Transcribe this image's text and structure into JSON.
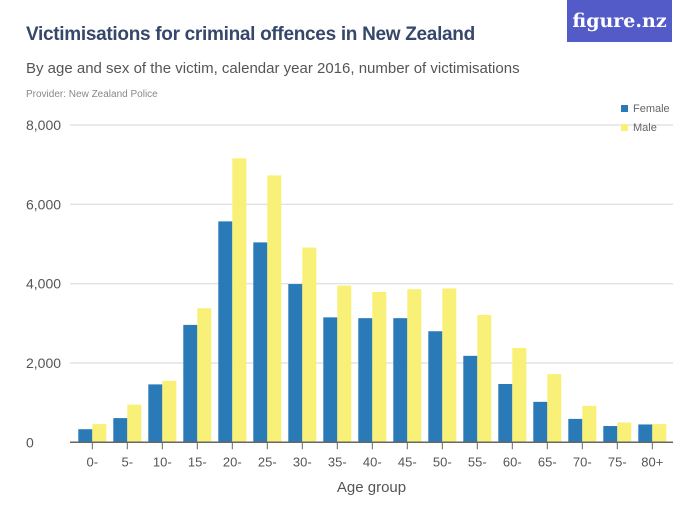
{
  "header": {
    "title": "Victimisations for criminal offences in New Zealand",
    "subtitle": "By age and sex of the victim, calendar year 2016, number of victimisations",
    "provider": "Provider: New Zealand Police",
    "logo": "figure.nz"
  },
  "chart_data": {
    "type": "bar",
    "title": "Victimisations for criminal offences in New Zealand",
    "xlabel": "Age group",
    "ylabel": "",
    "ylim": [
      0,
      8000
    ],
    "yticks": [
      0,
      2000,
      4000,
      6000,
      8000
    ],
    "ytick_labels": [
      "0",
      "2,000",
      "4,000",
      "6,000",
      "8,000"
    ],
    "grid": true,
    "legend_placement": "top-right",
    "categories": [
      "0-",
      "5-",
      "10-",
      "15-",
      "20-",
      "25-",
      "30-",
      "35-",
      "40-",
      "45-",
      "50-",
      "55-",
      "60-",
      "65-",
      "70-",
      "75-",
      "80+"
    ],
    "series": [
      {
        "name": "Female",
        "color": "#2a7ab8",
        "values": [
          330,
          610,
          1460,
          2960,
          5570,
          5040,
          3990,
          3150,
          3130,
          3130,
          2800,
          2180,
          1470,
          1020,
          590,
          410,
          450
        ]
      },
      {
        "name": "Male",
        "color": "#f9f177",
        "values": [
          460,
          950,
          1550,
          3380,
          7160,
          6730,
          4910,
          3950,
          3790,
          3860,
          3880,
          3210,
          2380,
          1720,
          920,
          500,
          460
        ]
      }
    ]
  }
}
